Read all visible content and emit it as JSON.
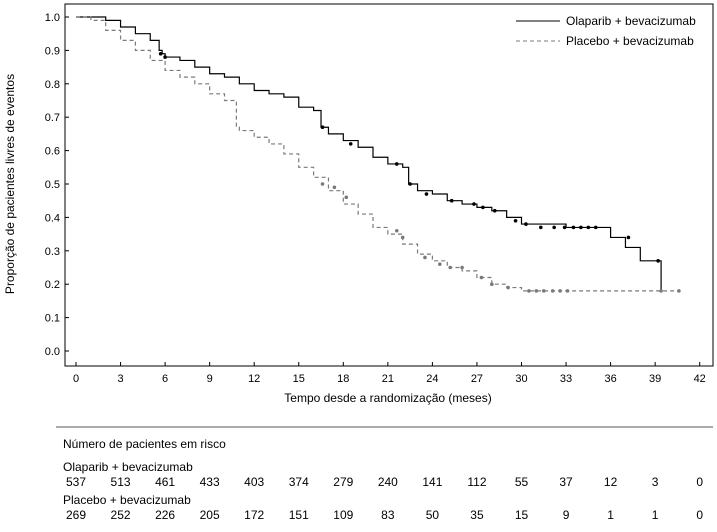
{
  "chart_data": {
    "type": "line",
    "subtype": "kaplan-meier",
    "xlabel": "Tempo desde a randomização (meses)",
    "ylabel": "Proporção de pacientes livres de eventos",
    "xlim": [
      -1,
      42.5
    ],
    "ylim": [
      0,
      1.0
    ],
    "xticks": [
      0,
      3,
      6,
      9,
      12,
      15,
      18,
      21,
      24,
      27,
      30,
      33,
      36,
      39,
      42
    ],
    "xtick_labels": [
      "0",
      "3",
      "6",
      "9",
      "12",
      "15",
      "18",
      "21",
      "24",
      "27",
      "30",
      "33",
      "36",
      "39",
      "42"
    ],
    "yticks": [
      0.0,
      0.1,
      0.2,
      0.3,
      0.4,
      0.5,
      0.6,
      0.7,
      0.8,
      0.9,
      1.0
    ],
    "ytick_labels": [
      "0.0",
      "0.1",
      "0.2",
      "0.3",
      "0.4",
      "0.5",
      "0.6",
      "0.7",
      "0.8",
      "0.9",
      "1.0"
    ],
    "grid": false,
    "legend_position": "top-right",
    "series": [
      {
        "name": "Olaparib + bevacizumab",
        "style": "solid",
        "color": "#000000",
        "x": [
          0,
          1.0,
          2.0,
          3.0,
          4.0,
          5.0,
          5.6,
          5.8,
          6.0,
          7.0,
          8.0,
          9.0,
          10.0,
          11.0,
          12.0,
          13.0,
          14.0,
          15.0,
          16.0,
          16.5,
          17.0,
          18.0,
          19.0,
          20.0,
          21.0,
          22.0,
          22.4,
          23.0,
          24.0,
          25.0,
          26.0,
          27.0,
          28.0,
          29.0,
          30.0,
          33.0,
          35.8,
          36.0,
          37.0,
          38.0,
          39.0,
          39.4
        ],
        "y": [
          1.0,
          1.0,
          0.99,
          0.97,
          0.95,
          0.93,
          0.9,
          0.89,
          0.88,
          0.87,
          0.85,
          0.83,
          0.82,
          0.8,
          0.78,
          0.77,
          0.76,
          0.73,
          0.72,
          0.67,
          0.65,
          0.63,
          0.61,
          0.58,
          0.56,
          0.55,
          0.5,
          0.48,
          0.47,
          0.45,
          0.44,
          0.43,
          0.42,
          0.4,
          0.38,
          0.37,
          0.37,
          0.34,
          0.31,
          0.27,
          0.27,
          0.18
        ],
        "censor_x": [
          5.7,
          6.0,
          16.6,
          18.5,
          21.6,
          22.5,
          23.6,
          25.3,
          26.8,
          27.4,
          28.2,
          29.6,
          30.3,
          31.3,
          32.2,
          32.9,
          33.5,
          34.0,
          34.5,
          35.0,
          37.2,
          39.2
        ],
        "censor_y": [
          0.89,
          0.88,
          0.67,
          0.62,
          0.56,
          0.5,
          0.47,
          0.45,
          0.44,
          0.43,
          0.42,
          0.39,
          0.38,
          0.37,
          0.37,
          0.37,
          0.37,
          0.37,
          0.37,
          0.37,
          0.34,
          0.27
        ]
      },
      {
        "name": "Placebo + bevacizumab",
        "style": "dashed",
        "color": "#7a7a7a",
        "x": [
          0,
          1.0,
          2.0,
          3.0,
          4.0,
          5.0,
          6.0,
          7.0,
          8.0,
          9.0,
          10.0,
          10.8,
          11.0,
          12.0,
          13.0,
          14.0,
          15.0,
          16.0,
          17.0,
          18.0,
          19.0,
          20.0,
          21.0,
          22.0,
          23.0,
          24.0,
          25.0,
          26.0,
          27.0,
          28.0,
          29.0,
          30.0,
          33.0,
          36.0,
          39.0,
          40.5
        ],
        "y": [
          1.0,
          0.99,
          0.96,
          0.93,
          0.9,
          0.87,
          0.84,
          0.82,
          0.8,
          0.77,
          0.75,
          0.67,
          0.66,
          0.64,
          0.62,
          0.59,
          0.55,
          0.52,
          0.48,
          0.44,
          0.41,
          0.37,
          0.35,
          0.32,
          0.29,
          0.27,
          0.25,
          0.24,
          0.22,
          0.2,
          0.19,
          0.18,
          0.18,
          0.18,
          0.18,
          0.18
        ],
        "censor_x": [
          16.6,
          17.4,
          18.2,
          21.6,
          22.0,
          23.5,
          24.5,
          25.2,
          26.0,
          27.3,
          28.0,
          29.1,
          30.5,
          31.0,
          31.5,
          32.1,
          32.6,
          33.1,
          39.4,
          40.6
        ],
        "censor_y": [
          0.5,
          0.49,
          0.46,
          0.36,
          0.34,
          0.28,
          0.26,
          0.25,
          0.25,
          0.22,
          0.2,
          0.19,
          0.18,
          0.18,
          0.18,
          0.18,
          0.18,
          0.18,
          0.18,
          0.18
        ]
      }
    ],
    "risk_table": {
      "title": "Número de pacientes em risco",
      "timepoints": [
        0,
        3,
        6,
        9,
        12,
        15,
        18,
        21,
        24,
        27,
        30,
        33,
        36,
        39,
        42
      ],
      "rows": [
        {
          "label": "Olaparib + bevacizumab",
          "values": [
            "537",
            "513",
            "461",
            "433",
            "403",
            "374",
            "279",
            "240",
            "141",
            "112",
            "55",
            "37",
            "12",
            "3",
            "0"
          ]
        },
        {
          "label": "Placebo + bevacizumab",
          "values": [
            "269",
            "252",
            "226",
            "205",
            "172",
            "151",
            "109",
            "83",
            "50",
            "35",
            "15",
            "9",
            "1",
            "1",
            "0"
          ]
        }
      ]
    }
  }
}
